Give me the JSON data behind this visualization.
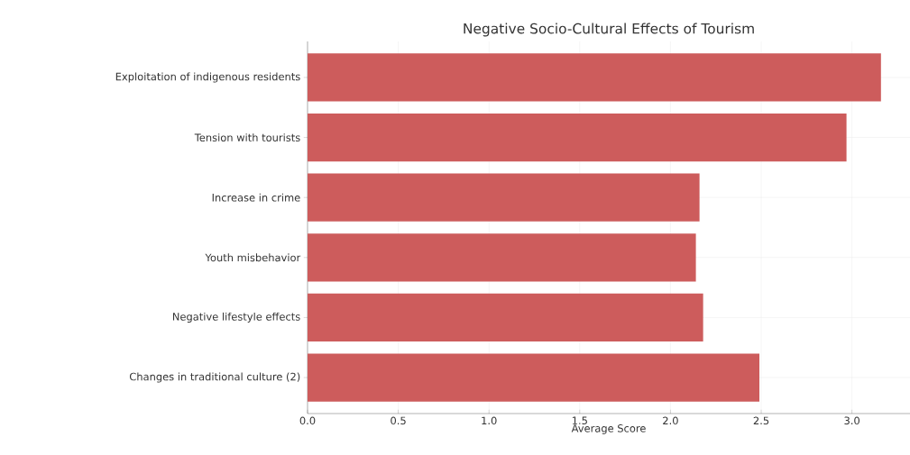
{
  "chart_data": {
    "type": "bar",
    "orientation": "horizontal",
    "title": "Negative Socio-Cultural Effects of Tourism",
    "xlabel": "Average Score",
    "categories": [
      "Exploitation of indigenous residents",
      "Tension with tourists",
      "Increase in crime",
      "Youth misbehavior",
      "Negative lifestyle effects",
      "Changes in traditional culture (2)"
    ],
    "values": [
      3.16,
      2.97,
      2.16,
      2.14,
      2.18,
      2.49
    ],
    "color": "#cd5c5c",
    "xlim": [
      0,
      3.32
    ],
    "xticks": [
      {
        "value": 0,
        "label": "0.0"
      },
      {
        "value": 0.5,
        "label": "0.5"
      },
      {
        "value": 1,
        "label": "1.0"
      },
      {
        "value": 1.5,
        "label": "1.5"
      },
      {
        "value": 2,
        "label": "2.0"
      },
      {
        "value": 2.5,
        "label": "2.5"
      },
      {
        "value": 3,
        "label": "3.0"
      }
    ],
    "grid": true
  }
}
